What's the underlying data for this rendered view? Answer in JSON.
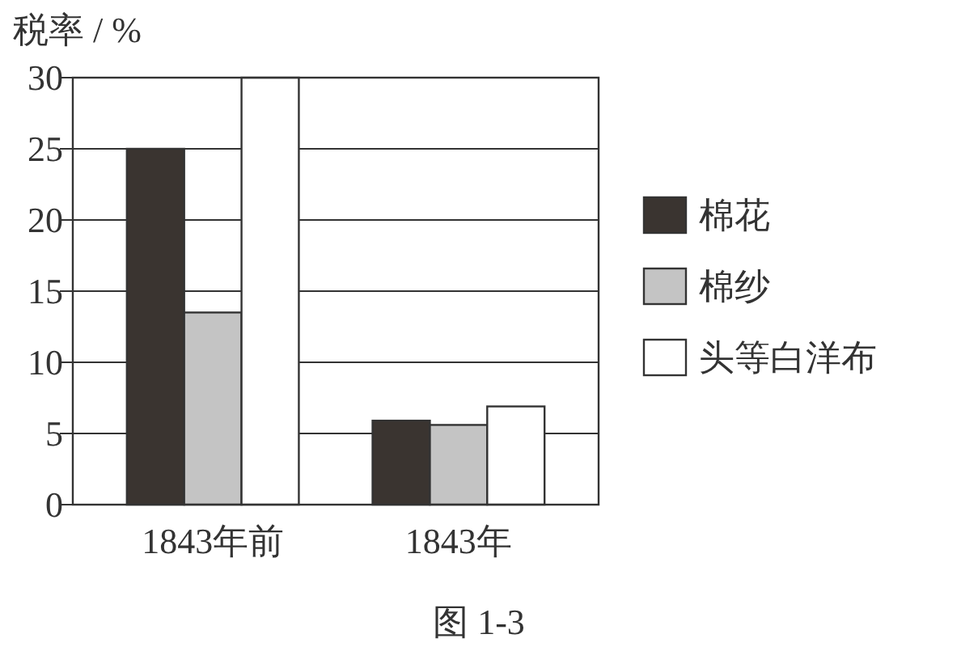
{
  "chart_data": {
    "type": "bar",
    "ylabel": "税率 / %",
    "categories": [
      "1843年前",
      "1843年"
    ],
    "series": [
      {
        "name": "棉花",
        "color": "#3a3430",
        "values": [
          25,
          5.9
        ]
      },
      {
        "name": "棉纱",
        "color": "#c4c4c4",
        "values": [
          13.5,
          5.6
        ]
      },
      {
        "name": "头等白洋布",
        "color": "#ffffff",
        "values": [
          30,
          6.9
        ]
      }
    ],
    "ylim": [
      0,
      30
    ],
    "yticks": [
      0,
      5,
      10,
      15,
      20,
      25,
      30
    ],
    "grid": "y",
    "legend": "right",
    "annotations": [
      "图 1-3"
    ]
  }
}
